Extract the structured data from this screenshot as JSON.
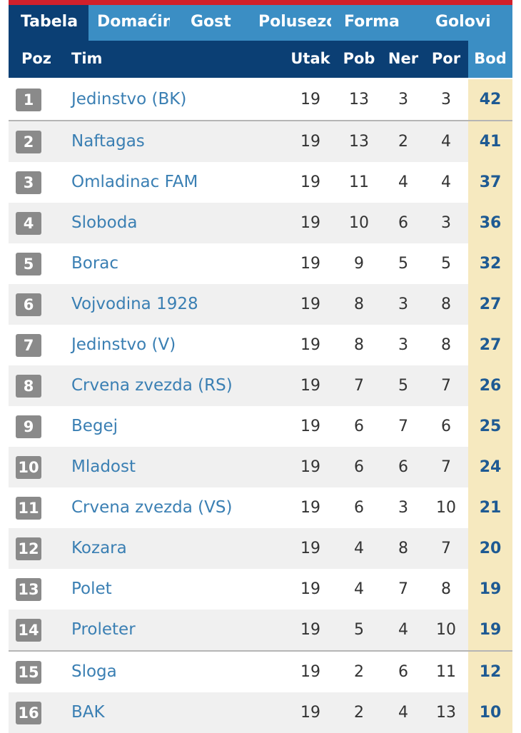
{
  "tabs": [
    {
      "label": "Tabela",
      "active": true
    },
    {
      "label": "Domaćin",
      "active": false
    },
    {
      "label": "Gost",
      "active": false
    },
    {
      "label": "Polusezona",
      "active": false
    },
    {
      "label": "Forma",
      "active": false
    },
    {
      "label": "Golovi",
      "active": false
    }
  ],
  "header": {
    "poz": "Poz",
    "tim": "Tim",
    "utak": "Utak",
    "pob": "Pob",
    "ner": "Ner",
    "por": "Por",
    "bod": "Bod"
  },
  "rows": [
    {
      "pos": "1",
      "team": "Jedinstvo (BK)",
      "utak": "19",
      "pob": "13",
      "ner": "3",
      "por": "3",
      "bod": "42"
    },
    {
      "pos": "2",
      "team": "Naftagas",
      "utak": "19",
      "pob": "13",
      "ner": "2",
      "por": "4",
      "bod": "41"
    },
    {
      "pos": "3",
      "team": "Omladinac FAM",
      "utak": "19",
      "pob": "11",
      "ner": "4",
      "por": "4",
      "bod": "37"
    },
    {
      "pos": "4",
      "team": "Sloboda",
      "utak": "19",
      "pob": "10",
      "ner": "6",
      "por": "3",
      "bod": "36"
    },
    {
      "pos": "5",
      "team": "Borac",
      "utak": "19",
      "pob": "9",
      "ner": "5",
      "por": "5",
      "bod": "32"
    },
    {
      "pos": "6",
      "team": "Vojvodina 1928",
      "utak": "19",
      "pob": "8",
      "ner": "3",
      "por": "8",
      "bod": "27"
    },
    {
      "pos": "7",
      "team": "Jedinstvo (V)",
      "utak": "19",
      "pob": "8",
      "ner": "3",
      "por": "8",
      "bod": "27"
    },
    {
      "pos": "8",
      "team": "Crvena zvezda (RS)",
      "utak": "19",
      "pob": "7",
      "ner": "5",
      "por": "7",
      "bod": "26"
    },
    {
      "pos": "9",
      "team": "Begej",
      "utak": "19",
      "pob": "6",
      "ner": "7",
      "por": "6",
      "bod": "25"
    },
    {
      "pos": "10",
      "team": "Mladost",
      "utak": "19",
      "pob": "6",
      "ner": "6",
      "por": "7",
      "bod": "24"
    },
    {
      "pos": "11",
      "team": "Crvena zvezda (VS)",
      "utak": "19",
      "pob": "6",
      "ner": "3",
      "por": "10",
      "bod": "21"
    },
    {
      "pos": "12",
      "team": "Kozara",
      "utak": "19",
      "pob": "4",
      "ner": "8",
      "por": "7",
      "bod": "20"
    },
    {
      "pos": "13",
      "team": "Polet",
      "utak": "19",
      "pob": "4",
      "ner": "7",
      "por": "8",
      "bod": "19"
    },
    {
      "pos": "14",
      "team": "Proleter",
      "utak": "19",
      "pob": "5",
      "ner": "4",
      "por": "10",
      "bod": "19"
    },
    {
      "pos": "15",
      "team": "Sloga",
      "utak": "19",
      "pob": "2",
      "ner": "6",
      "por": "11",
      "bod": "12"
    },
    {
      "pos": "16",
      "team": "BAK",
      "utak": "19",
      "pob": "2",
      "ner": "4",
      "por": "13",
      "bod": "10"
    }
  ],
  "colors": {
    "accent_red": "#d1202b",
    "tab_bar": "#3b8ec4",
    "header_dark": "#0b3f74",
    "points_bg": "#f6e9bf",
    "team_link": "#3a7fb3"
  }
}
